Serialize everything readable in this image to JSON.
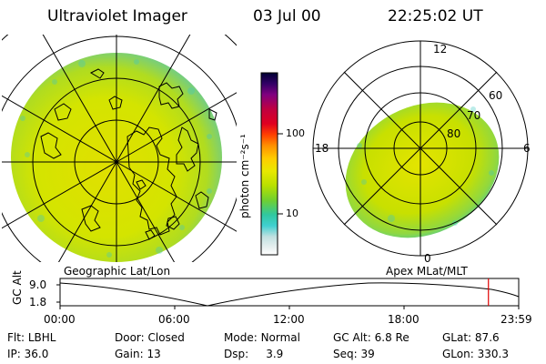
{
  "header": {
    "title": "Ultraviolet Imager",
    "date": "03 Jul 00",
    "time": "22:25:02 UT"
  },
  "colorbar": {
    "unit_label": "photon cm⁻²s⁻¹",
    "ticks": [
      "100",
      "10"
    ],
    "colors": [
      "#000033",
      "#330066",
      "#800080",
      "#c00040",
      "#e00020",
      "#ff4000",
      "#ff9000",
      "#ffcc00",
      "#e8e800",
      "#b8e000",
      "#70d030",
      "#30c8a0",
      "#40d0d0",
      "#c0e0e0",
      "#e8f0f0",
      "#ffffff"
    ]
  },
  "left_map": {
    "label": "Geographic Lat/Lon"
  },
  "right_map": {
    "label": "Apex MLat/MLT",
    "mlt_labels": {
      "top": "12",
      "left": "18",
      "right": "6",
      "bottom": "0"
    },
    "lat_labels": [
      "60",
      "70",
      "80"
    ]
  },
  "timeline": {
    "y_label": "GC Alt",
    "y_ticks": [
      "9.0",
      "1.8"
    ],
    "x_ticks": [
      "00:00",
      "06:00",
      "12:00",
      "18:00",
      "23:59"
    ],
    "current_time_fraction": 0.934
  },
  "status": {
    "row1": [
      {
        "k": "Flt:",
        "v": "LBHL"
      },
      {
        "k": "Door:",
        "v": "Closed"
      },
      {
        "k": "Mode:",
        "v": "Normal"
      },
      {
        "k": "GC Alt:",
        "v": "6.8 Re"
      },
      {
        "k": "GLat:",
        "v": "87.6"
      }
    ],
    "row2": [
      {
        "k": "IP:",
        "v": "36.0"
      },
      {
        "k": "Gain:",
        "v": "13"
      },
      {
        "k": "Dsp:",
        "v": "3.9"
      },
      {
        "k": "Seq:",
        "v": "39"
      },
      {
        "k": "GLon:",
        "v": "330.3"
      }
    ]
  }
}
